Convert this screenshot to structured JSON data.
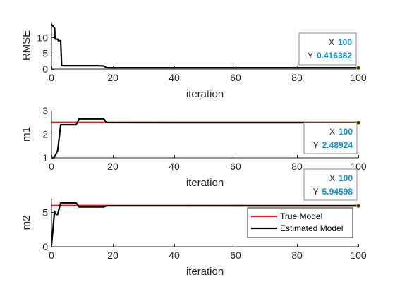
{
  "chart_data": [
    {
      "type": "line",
      "xlabel": "iteration",
      "ylabel": "RMSE",
      "xlim": [
        0,
        100
      ],
      "ylim": [
        0,
        15
      ],
      "xticks": [
        0,
        20,
        40,
        60,
        80,
        100
      ],
      "yticks": [
        0,
        5,
        10
      ],
      "grid": false,
      "series": [
        {
          "color": "#000000",
          "x": [
            0,
            1,
            1.2,
            2,
            2.2,
            3,
            3.3,
            4,
            15,
            17,
            18,
            20,
            40,
            60,
            80,
            100
          ],
          "y": [
            14.2,
            13.0,
            9.5,
            9.5,
            9.0,
            9.0,
            1.2,
            1.1,
            1.1,
            1.0,
            0.45,
            0.42,
            0.42,
            0.42,
            0.42,
            0.416
          ]
        }
      ],
      "datatip": {
        "x_key": "X",
        "x_value": "100",
        "y_key": "Y",
        "y_value": "0.416382",
        "x": 100,
        "y": 0.416382
      }
    },
    {
      "type": "line",
      "xlabel": "iteration",
      "ylabel": "m1",
      "xlim": [
        0,
        100
      ],
      "ylim": [
        1,
        3
      ],
      "xticks": [
        0,
        20,
        40,
        60,
        80,
        100
      ],
      "yticks": [
        1,
        2,
        3
      ],
      "grid": false,
      "series": [
        {
          "color": "#e8161c",
          "x": [
            0,
            100
          ],
          "y": [
            2.5,
            2.5
          ]
        },
        {
          "color": "#000000",
          "x": [
            0,
            0.8,
            1,
            2,
            3,
            4,
            8,
            9,
            17,
            18,
            100
          ],
          "y": [
            1.0,
            1.0,
            1.05,
            1.3,
            2.4,
            2.4,
            2.4,
            2.65,
            2.65,
            2.49,
            2.489
          ]
        }
      ],
      "datatip": {
        "x_key": "X",
        "x_value": "100",
        "y_key": "Y",
        "y_value": "2.48924",
        "x": 100,
        "y": 2.48924
      }
    },
    {
      "type": "line",
      "xlabel": "iteration",
      "ylabel": "m2",
      "xlim": [
        0,
        100
      ],
      "ylim": [
        0,
        7
      ],
      "xticks": [
        0,
        20,
        40,
        60,
        80,
        100
      ],
      "yticks": [
        0,
        5
      ],
      "grid": false,
      "series": [
        {
          "name": "True Model",
          "color": "#e8161c",
          "x": [
            0,
            100
          ],
          "y": [
            6.0,
            6.0
          ]
        },
        {
          "name": "Estimated Model",
          "color": "#000000",
          "x": [
            0,
            1,
            1.5,
            2,
            3,
            4,
            8,
            9,
            17,
            18,
            100
          ],
          "y": [
            0.2,
            5.2,
            4.7,
            4.7,
            6.4,
            6.4,
            6.4,
            5.8,
            5.8,
            5.95,
            5.946
          ]
        }
      ],
      "legend": {
        "position": "bottom-right",
        "entries": [
          "True Model",
          "Estimated Model"
        ]
      },
      "datatip": {
        "x_key": "X",
        "x_value": "100",
        "y_key": "Y",
        "y_value": "5.94598",
        "x": 100,
        "y": 5.94598
      }
    }
  ]
}
